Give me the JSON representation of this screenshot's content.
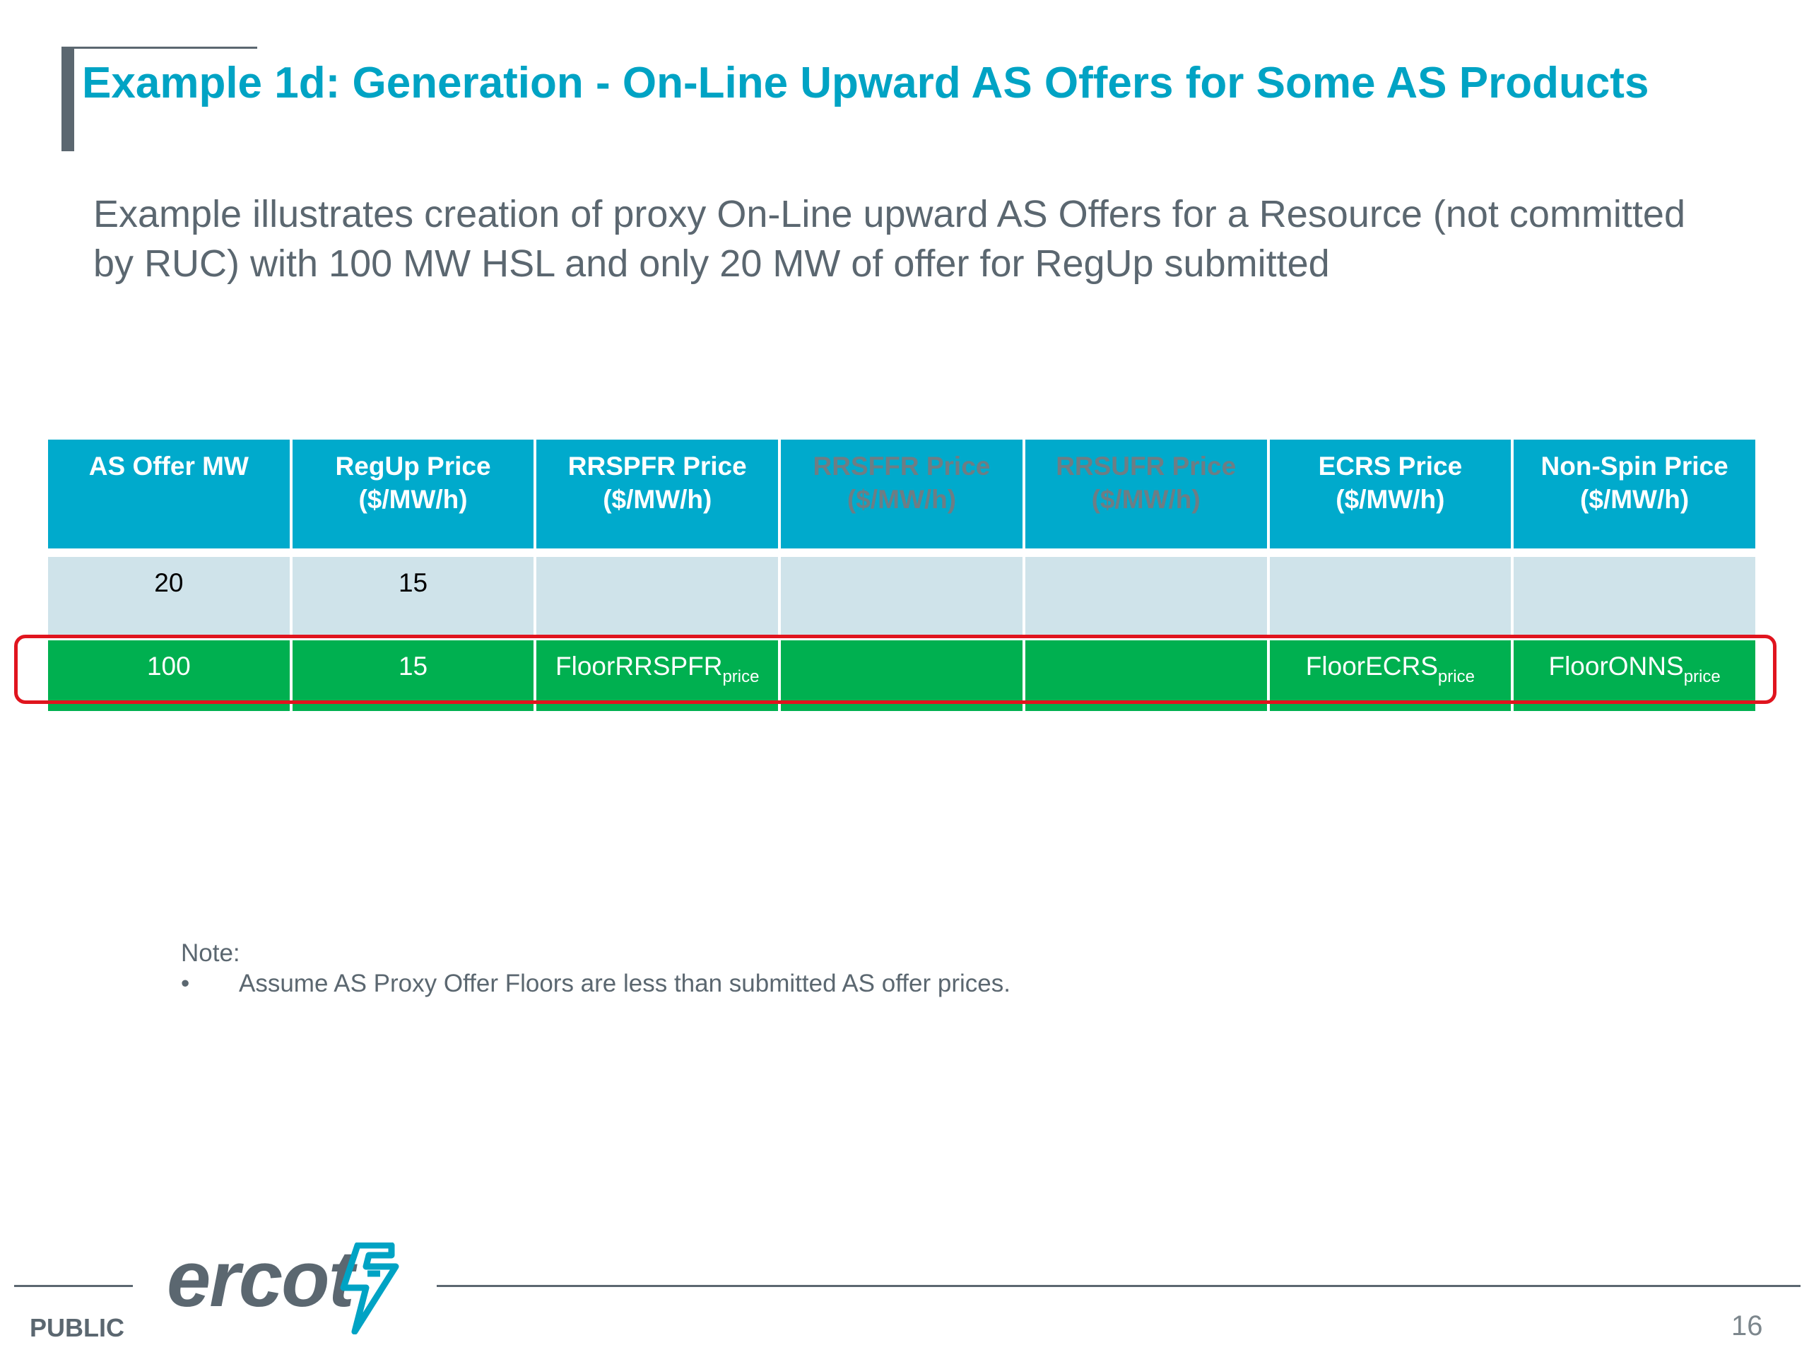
{
  "slide": {
    "title": "Example 1d: Generation - On-Line Upward AS Offers for Some AS Products",
    "subtitle": "Example illustrates creation of proxy On-Line upward AS Offers for a Resource (not committed by RUC) with 100 MW HSL and only 20 MW of offer for RegUp submitted"
  },
  "table": {
    "headers": [
      {
        "line1": "AS Offer MW",
        "line2": ""
      },
      {
        "line1": "RegUp Price",
        "line2": "($/MW/h)"
      },
      {
        "line1": "RRSPFR Price",
        "line2": "($/MW/h)"
      },
      {
        "line1": "RRSFFR Price",
        "line2": "($/MW/h)"
      },
      {
        "line1": "RRSUFR Price",
        "line2": "($/MW/h)"
      },
      {
        "line1": "ECRS Price",
        "line2": "($/MW/h)"
      },
      {
        "line1": "Non-Spin Price",
        "line2": "($/MW/h)"
      }
    ],
    "row1": [
      "20",
      "15",
      "",
      "",
      "",
      "",
      ""
    ],
    "row2": [
      {
        "main": "100",
        "sub": ""
      },
      {
        "main": "15",
        "sub": ""
      },
      {
        "main": "FloorRRSPFR",
        "sub": "price"
      },
      {
        "main": "",
        "sub": ""
      },
      {
        "main": "",
        "sub": ""
      },
      {
        "main": "FloorECRS",
        "sub": "price"
      },
      {
        "main": "FloorONNS",
        "sub": "price"
      }
    ]
  },
  "note": {
    "label": "Note:",
    "bullet": "•",
    "text": "Assume AS Proxy Offer Floors are less than submitted AS offer prices."
  },
  "footer": {
    "classification": "PUBLIC",
    "logo_text": "ercot",
    "page_number": "16"
  },
  "colors": {
    "title": "#00a3c4",
    "header_bg": "#00aacc",
    "row1_bg": "#cfe3ea",
    "row2_bg": "#00b050",
    "highlight_border": "#e0141e",
    "muted_header_text": "#6e7d84"
  },
  "icons": {
    "logo_mark": "ercot-bolt-icon"
  }
}
